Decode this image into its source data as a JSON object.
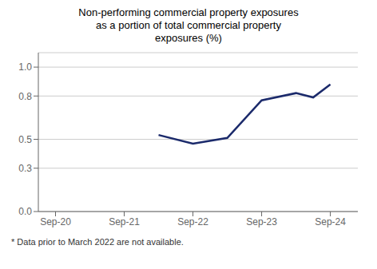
{
  "chart_data": {
    "type": "line",
    "title": "Non-performing commercial property exposures\nas a portion of total commercial property\nexposures (%)",
    "x": [
      3,
      4,
      5,
      6,
      7,
      7.5,
      8
    ],
    "values": [
      0.53,
      0.47,
      0.51,
      0.77,
      0.82,
      0.79,
      0.88
    ],
    "color": "#1b2a6b",
    "xlim": [
      -0.5,
      8.8
    ],
    "xticks": [
      {
        "value": 0,
        "label": "Sep-20"
      },
      {
        "value": 2,
        "label": "Sep-21"
      },
      {
        "value": 4,
        "label": "Sep-22"
      },
      {
        "value": 6,
        "label": "Sep-23"
      },
      {
        "value": 8,
        "label": "Sep-24"
      }
    ],
    "ylim": [
      0.0,
      1.1
    ],
    "yticks": [
      {
        "value": 0,
        "label": "0.0"
      },
      0.3,
      0.5,
      0.8,
      {
        "value": 1,
        "label": "1.0"
      }
    ],
    "grid": "y",
    "footnote": "* Data prior to March 2022 are not available."
  }
}
